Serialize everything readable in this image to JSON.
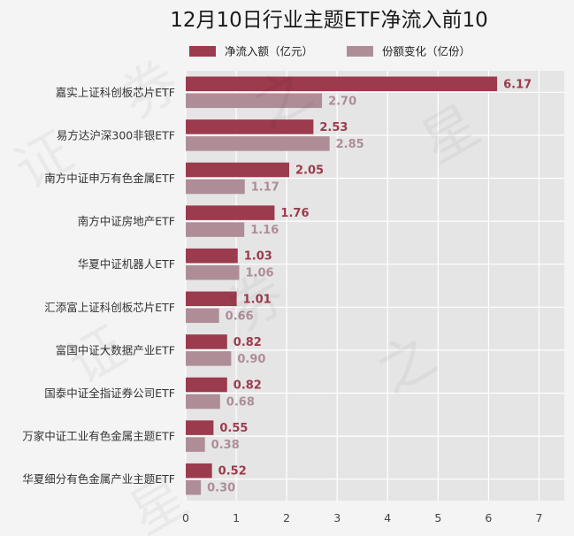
{
  "chart_data": {
    "type": "bar",
    "orientation": "horizontal",
    "title": "12月10日行业主题ETF净流入前10",
    "legend_position": "top",
    "categories": [
      "嘉实上证科创板芯片ETF",
      "易方达沪深300非银ETF",
      "南方中证申万有色金属ETF",
      "南方中证房地产ETF",
      "华夏中证机器人ETF",
      "汇添富上证科创板芯片ETF",
      "富国中证大数据产业ETF",
      "国泰中证全指证券公司ETF",
      "万家中证工业有色金属主题ETF",
      "华夏细分有色金属产业主题ETF"
    ],
    "series": [
      {
        "name": "净流入额（亿元）",
        "color": "#9b3b4d",
        "values": [
          6.17,
          2.53,
          2.05,
          1.76,
          1.03,
          1.01,
          0.82,
          0.82,
          0.55,
          0.52
        ],
        "labels": [
          "6.17",
          "2.53",
          "2.05",
          "1.76",
          "1.03",
          "1.01",
          "0.82",
          "0.82",
          "0.55",
          "0.52"
        ]
      },
      {
        "name": "份额变化（亿份）",
        "color": "#ae8d97",
        "values": [
          2.7,
          2.85,
          1.17,
          1.16,
          1.06,
          0.66,
          0.9,
          0.68,
          0.38,
          0.3
        ],
        "labels": [
          "2.70",
          "2.85",
          "1.17",
          "1.16",
          "1.06",
          "0.66",
          "0.90",
          "0.68",
          "0.38",
          "0.30"
        ]
      }
    ],
    "xlim": [
      0,
      7.5
    ],
    "xticks": [
      "0",
      "1",
      "2",
      "3",
      "4",
      "5",
      "6",
      "7"
    ],
    "grid": true
  },
  "watermark": "证券之星"
}
